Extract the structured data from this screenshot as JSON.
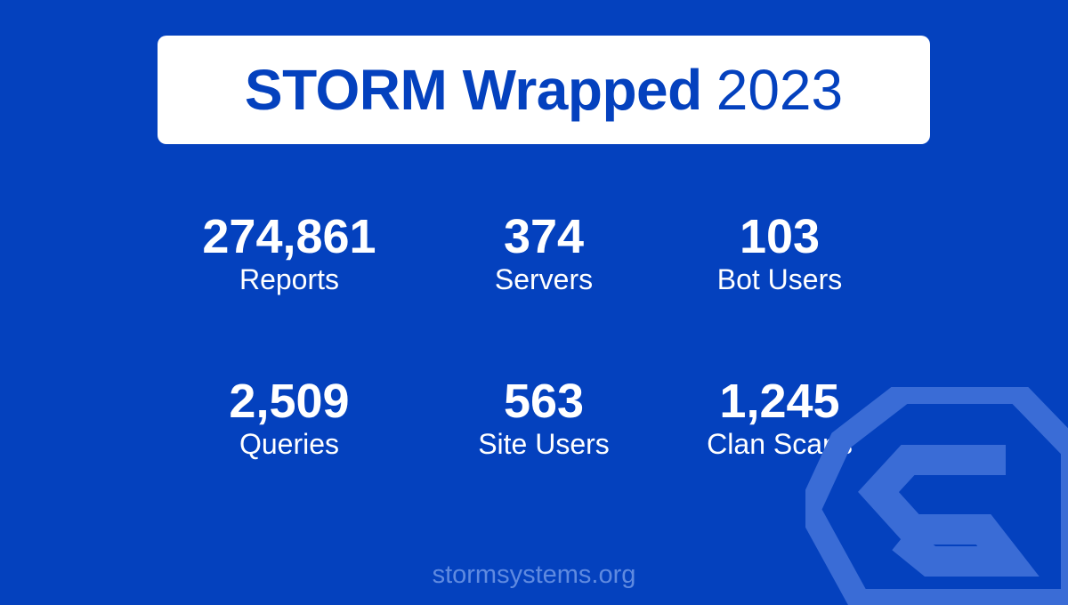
{
  "header": {
    "title_bold": "STORM Wrapped",
    "title_year": "2023"
  },
  "stats": [
    {
      "value": "274,861",
      "label": "Reports"
    },
    {
      "value": "374",
      "label": "Servers"
    },
    {
      "value": "103",
      "label": "Bot Users"
    },
    {
      "value": "2,509",
      "label": "Queries"
    },
    {
      "value": "563",
      "label": "Site Users"
    },
    {
      "value": "1,245",
      "label": "Clan Scans"
    }
  ],
  "footer": {
    "url": "stormsystems.org"
  },
  "colors": {
    "background": "#0441BE",
    "card": "#FFFFFF",
    "text": "#FFFFFF",
    "accent": "#0441BE",
    "footer_text": "#5F8AE0"
  },
  "logo": {
    "icon": "storm-shield-logo-icon"
  }
}
